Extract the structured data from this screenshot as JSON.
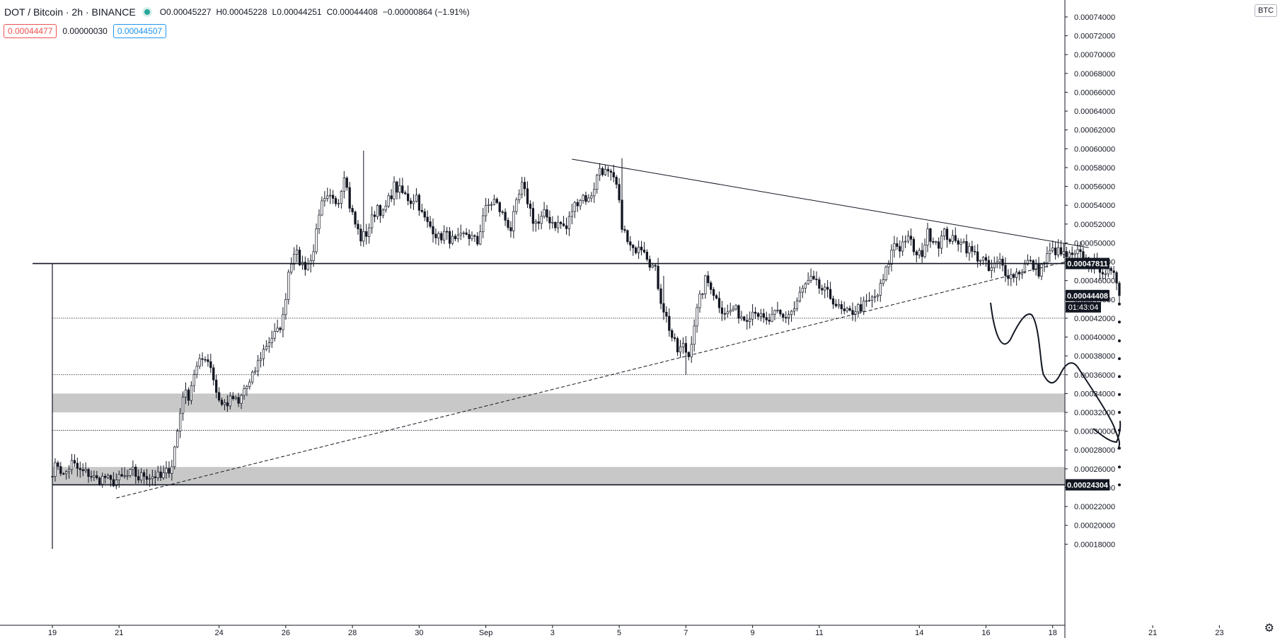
{
  "header": {
    "symbol": "DOT / Bitcoin · 2h · BINANCE",
    "open_label": "O",
    "open": "0.00045227",
    "high_label": "H",
    "high": "0.00045228",
    "low_label": "L",
    "low": "0.00044251",
    "close_label": "C",
    "close": "0.00044408",
    "change": "−0.00000864 (−1.91%)"
  },
  "quotes": {
    "sell": "0.00044477",
    "spread": "0.00000030",
    "buy": "0.00044507"
  },
  "currency_badge": "BTC",
  "colors": {
    "candle": "#131722",
    "live_dot": "#26a69a",
    "sell": "#ef5350",
    "buy": "#2196f3",
    "zone": "#c8c8c8",
    "badge_dark": "#131722"
  },
  "chart_data": {
    "type": "candlestick",
    "interval": "2h",
    "ylim": [
      0.000172,
      0.000758
    ],
    "y_ticks": [
      "0.00018000",
      "0.00020000",
      "0.00022000",
      "0.00024000",
      "0.00026000",
      "0.00028000",
      "0.00030000",
      "0.00032000",
      "0.00034000",
      "0.00036000",
      "0.00038000",
      "0.00040000",
      "0.00042000",
      "0.00044000",
      "0.00046000",
      "0.00048000",
      "0.00050000",
      "0.00052000",
      "0.00054000",
      "0.00056000",
      "0.00058000",
      "0.00060000",
      "0.00062000",
      "0.00064000",
      "0.00066000",
      "0.00068000",
      "0.00070000",
      "0.00072000",
      "0.00074000"
    ],
    "x_ticks": [
      "19",
      "21",
      "24",
      "26",
      "28",
      "30",
      "Sep",
      "3",
      "5",
      "7",
      "9",
      "11",
      "14",
      "16",
      "18",
      "21",
      "23"
    ],
    "x_tick_index": [
      0,
      24,
      60,
      84,
      108,
      132,
      156,
      180,
      204,
      228,
      252,
      276,
      312,
      336,
      360,
      396,
      420
    ],
    "price_labels": [
      {
        "label": "0.00047811",
        "value": 0.00047811
      },
      {
        "label": "0.00044408",
        "value": 0.00044408
      },
      {
        "label": "0.00024304",
        "value": 0.00024304
      }
    ],
    "countdown": "01:43:04",
    "horizontal_lines": [
      0.00047811,
      0.00024304
    ],
    "dotted_levels": [
      0.00042,
      0.00036,
      0.000301
    ],
    "zones": [
      [
        0.00032,
        0.00034
      ],
      [
        0.000243,
        0.000262
      ]
    ],
    "trendlines": [
      {
        "style": "solid",
        "from": [
          187,
          0.000589
        ],
        "to": [
          373,
          0.000495
        ]
      },
      {
        "style": "dashed",
        "from": [
          23,
          0.000229
        ],
        "to": [
          370,
          0.000484
        ]
      }
    ],
    "dots_column_index": 384,
    "dots_levels": [
      0.000435,
      0.000416,
      0.000396,
      0.000377,
      0.000358,
      0.000339,
      0.00032,
      0.000301,
      0.000282,
      0.000262,
      0.000243
    ],
    "anchors": [
      [
        0,
        0.000258
      ],
      [
        2,
        0.000265
      ],
      [
        4,
        0.000252
      ],
      [
        7,
        0.000266
      ],
      [
        10,
        0.000257
      ],
      [
        13,
        0.000255
      ],
      [
        16,
        0.000248
      ],
      [
        19,
        0.000251
      ],
      [
        21,
        0.000245
      ],
      [
        23,
        0.000248
      ],
      [
        25,
        0.00025
      ],
      [
        27,
        0.000252
      ],
      [
        29,
        0.000257
      ],
      [
        31,
        0.00025
      ],
      [
        33,
        0.000254
      ],
      [
        35,
        0.000252
      ],
      [
        37,
        0.000253
      ],
      [
        39,
        0.00025
      ],
      [
        41,
        0.000256
      ],
      [
        43,
        0.000265
      ],
      [
        45,
        0.0003
      ],
      [
        47,
        0.00034
      ],
      [
        49,
        0.000338
      ],
      [
        51,
        0.000362
      ],
      [
        53,
        0.000372
      ],
      [
        55,
        0.00038
      ],
      [
        57,
        0.00037
      ],
      [
        59,
        0.000342
      ],
      [
        61,
        0.000328
      ],
      [
        63,
        0.00033
      ],
      [
        65,
        0.000335
      ],
      [
        67,
        0.000328
      ],
      [
        69,
        0.000345
      ],
      [
        71,
        0.00035
      ],
      [
        73,
        0.000365
      ],
      [
        75,
        0.00038
      ],
      [
        77,
        0.000392
      ],
      [
        79,
        0.0004
      ],
      [
        81,
        0.000405
      ],
      [
        83,
        0.00042
      ],
      [
        85,
        0.00047
      ],
      [
        87,
        0.000493
      ],
      [
        89,
        0.00048
      ],
      [
        91,
        0.000476
      ],
      [
        93,
        0.00048
      ],
      [
        95,
        0.00051
      ],
      [
        97,
        0.00054
      ],
      [
        99,
        0.000545
      ],
      [
        101,
        0.00055
      ],
      [
        103,
        0.000545
      ],
      [
        105,
        0.000575
      ],
      [
        107,
        0.00054
      ],
      [
        109,
        0.00052
      ],
      [
        111,
        0.000505
      ],
      [
        113,
        0.00051
      ],
      [
        115,
        0.000525
      ],
      [
        117,
        0.00054
      ],
      [
        119,
        0.00053
      ],
      [
        121,
        0.000545
      ],
      [
        123,
        0.00056
      ],
      [
        125,
        0.000555
      ],
      [
        127,
        0.00055
      ],
      [
        129,
        0.000545
      ],
      [
        131,
        0.00055
      ],
      [
        133,
        0.00053
      ],
      [
        135,
        0.00052
      ],
      [
        137,
        0.000515
      ],
      [
        139,
        0.000505
      ],
      [
        141,
        0.00051
      ],
      [
        143,
        0.000505
      ],
      [
        145,
        0.0005
      ],
      [
        147,
        0.000505
      ],
      [
        149,
        0.00051
      ],
      [
        151,
        0.000505
      ],
      [
        153,
        0.0005
      ],
      [
        155,
        0.00053
      ],
      [
        157,
        0.00054
      ],
      [
        159,
        0.000545
      ],
      [
        161,
        0.000535
      ],
      [
        163,
        0.000525
      ],
      [
        165,
        0.000515
      ],
      [
        167,
        0.00054
      ],
      [
        169,
        0.00056
      ],
      [
        171,
        0.000545
      ],
      [
        173,
        0.000525
      ],
      [
        175,
        0.00052
      ],
      [
        177,
        0.00053
      ],
      [
        179,
        0.000525
      ],
      [
        181,
        0.00052
      ],
      [
        183,
        0.00052
      ],
      [
        185,
        0.000515
      ],
      [
        187,
        0.000535
      ],
      [
        189,
        0.000545
      ],
      [
        191,
        0.00055
      ],
      [
        193,
        0.000545
      ],
      [
        195,
        0.00056
      ],
      [
        197,
        0.00058
      ],
      [
        199,
        0.000575
      ],
      [
        201,
        0.00057
      ],
      [
        203,
        0.00056
      ],
      [
        205,
        0.00052
      ],
      [
        207,
        0.0005
      ],
      [
        209,
        0.00049
      ],
      [
        211,
        0.0005
      ],
      [
        213,
        0.000495
      ],
      [
        215,
        0.00048
      ],
      [
        217,
        0.00047
      ],
      [
        219,
        0.00044
      ],
      [
        221,
        0.00042
      ],
      [
        223,
        0.0004
      ],
      [
        225,
        0.000385
      ],
      [
        227,
        0.00039
      ],
      [
        229,
        0.00038
      ],
      [
        231,
        0.000415
      ],
      [
        233,
        0.00044
      ],
      [
        235,
        0.00046
      ],
      [
        237,
        0.000455
      ],
      [
        239,
        0.00044
      ],
      [
        241,
        0.00043
      ],
      [
        243,
        0.000425
      ],
      [
        245,
        0.00043
      ],
      [
        247,
        0.000425
      ],
      [
        249,
        0.00042
      ],
      [
        251,
        0.000425
      ],
      [
        253,
        0.00043
      ],
      [
        255,
        0.00042
      ],
      [
        257,
        0.000415
      ],
      [
        259,
        0.00042
      ],
      [
        261,
        0.000425
      ],
      [
        263,
        0.00042
      ],
      [
        265,
        0.000425
      ],
      [
        267,
        0.00043
      ],
      [
        269,
        0.000445
      ],
      [
        271,
        0.000455
      ],
      [
        273,
        0.00046
      ],
      [
        275,
        0.000455
      ],
      [
        277,
        0.00045
      ],
      [
        279,
        0.000445
      ],
      [
        281,
        0.00044
      ],
      [
        283,
        0.00043
      ],
      [
        285,
        0.000425
      ],
      [
        287,
        0.000425
      ],
      [
        289,
        0.00043
      ],
      [
        291,
        0.000432
      ],
      [
        293,
        0.000435
      ],
      [
        295,
        0.00044
      ],
      [
        297,
        0.000445
      ],
      [
        299,
        0.00046
      ],
      [
        301,
        0.00048
      ],
      [
        303,
        0.0005
      ],
      [
        305,
        0.000495
      ],
      [
        307,
        0.000505
      ],
      [
        309,
        0.0005
      ],
      [
        311,
        0.000485
      ],
      [
        313,
        0.00049
      ],
      [
        315,
        0.00051
      ],
      [
        317,
        0.000505
      ],
      [
        319,
        0.0005
      ],
      [
        321,
        0.00051
      ],
      [
        323,
        0.000505
      ],
      [
        325,
        0.0005
      ],
      [
        327,
        0.000505
      ],
      [
        329,
        0.000495
      ],
      [
        331,
        0.00049
      ],
      [
        333,
        0.000485
      ],
      [
        335,
        0.000482
      ],
      [
        337,
        0.00047
      ],
      [
        339,
        0.000475
      ],
      [
        341,
        0.00048
      ],
      [
        343,
        0.00047
      ],
      [
        345,
        0.000465
      ],
      [
        347,
        0.000468
      ],
      [
        349,
        0.000472
      ],
      [
        351,
        0.00048
      ],
      [
        353,
        0.000475
      ],
      [
        355,
        0.00047
      ],
      [
        357,
        0.00048
      ],
      [
        359,
        0.00049
      ],
      [
        361,
        0.000492
      ],
      [
        363,
        0.000488
      ],
      [
        365,
        0.000486
      ],
      [
        367,
        0.000484
      ],
      [
        369,
        0.000488
      ],
      [
        371,
        0.000485
      ],
      [
        373,
        0.000478
      ],
      [
        375,
        0.000476
      ],
      [
        377,
        0.000474
      ],
      [
        379,
        0.00047
      ],
      [
        381,
        0.000466
      ],
      [
        383,
        0.00046
      ],
      [
        384,
        0.000444
      ]
    ]
  }
}
